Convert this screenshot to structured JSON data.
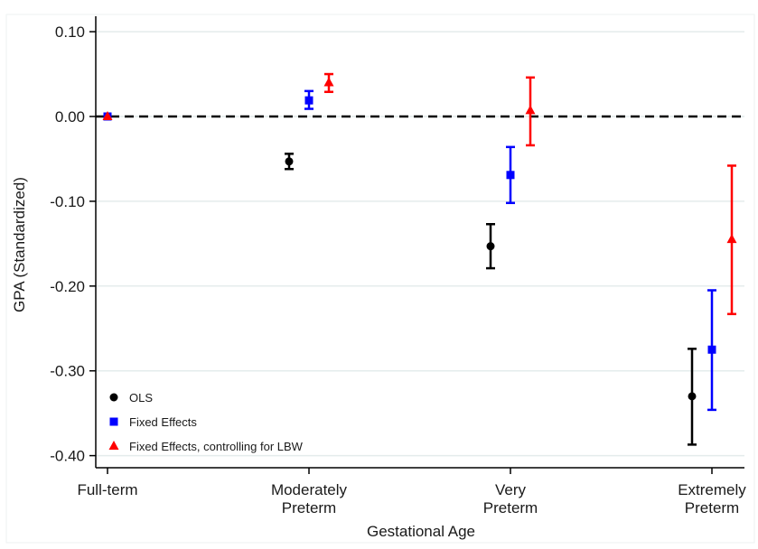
{
  "chart_data": {
    "type": "scatter",
    "xlabel": "Gestational Age",
    "ylabel": "GPA (Standardized)",
    "ylim": [
      -0.41,
      0.11
    ],
    "yticks": [
      0.1,
      0.0,
      -0.1,
      -0.2,
      -0.3,
      -0.4
    ],
    "ytick_labels": [
      "0.10",
      "0.00",
      "-0.10",
      "-0.20",
      "-0.30",
      "-0.40"
    ],
    "categories": [
      [
        "Full-term"
      ],
      [
        "Moderately",
        "Preterm"
      ],
      [
        "Very",
        "Preterm"
      ],
      [
        "Extremely",
        "Preterm"
      ]
    ],
    "reference_line": {
      "y": 0,
      "style": "dashed",
      "color": "#000000"
    },
    "grid": {
      "horizontal": true,
      "color": "#e4ecec"
    },
    "legend_position": "bottom-left",
    "series": [
      {
        "name": "OLS",
        "marker": "circle",
        "color": "#000000",
        "points": [
          {
            "category": 1,
            "y": -0.053,
            "lo": -0.062,
            "hi": -0.044
          },
          {
            "category": 2,
            "y": -0.153,
            "lo": -0.179,
            "hi": -0.127
          },
          {
            "category": 3,
            "y": -0.33,
            "lo": -0.387,
            "hi": -0.274
          }
        ]
      },
      {
        "name": "Fixed Effects",
        "marker": "square",
        "color": "#0000ff",
        "points": [
          {
            "category": 0,
            "y": 0.0,
            "lo": 0.0,
            "hi": 0.0
          },
          {
            "category": 1,
            "y": 0.019,
            "lo": 0.009,
            "hi": 0.03
          },
          {
            "category": 2,
            "y": -0.069,
            "lo": -0.102,
            "hi": -0.036
          },
          {
            "category": 3,
            "y": -0.275,
            "lo": -0.346,
            "hi": -0.205
          }
        ]
      },
      {
        "name": "Fixed Effects, controlling for LBW",
        "marker": "triangle",
        "color": "#ff0000",
        "points": [
          {
            "category": 0,
            "y": 0.0,
            "lo": 0.0,
            "hi": 0.0
          },
          {
            "category": 1,
            "y": 0.04,
            "lo": 0.029,
            "hi": 0.05
          },
          {
            "category": 2,
            "y": 0.007,
            "lo": -0.034,
            "hi": 0.046
          },
          {
            "category": 3,
            "y": -0.145,
            "lo": -0.233,
            "hi": -0.058
          }
        ]
      }
    ]
  }
}
